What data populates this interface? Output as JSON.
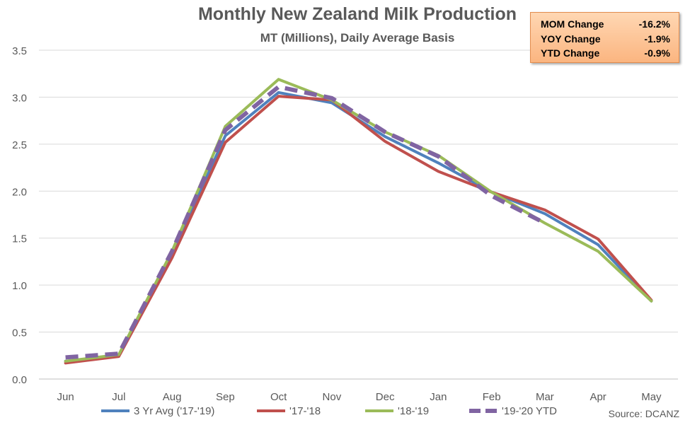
{
  "chart_data": {
    "type": "line",
    "title": "Monthly New Zealand Milk Production",
    "subtitle": "MT (Millions), Daily Average Basis",
    "categories": [
      "Jun",
      "Jul",
      "Aug",
      "Sep",
      "Oct",
      "Nov",
      "Dec",
      "Jan",
      "Feb",
      "Mar",
      "Apr",
      "May"
    ],
    "ylim": [
      0,
      3.5
    ],
    "yticks": [
      "0.0",
      "0.5",
      "1.0",
      "1.5",
      "2.0",
      "2.5",
      "3.0",
      "3.5"
    ],
    "grid": true,
    "legend_position": "bottom",
    "series": [
      {
        "name": "3 Yr Avg ('17-'19)",
        "color": "#4f81bd",
        "dashed": false,
        "values": [
          0.19,
          0.25,
          1.33,
          2.59,
          3.05,
          2.94,
          2.58,
          2.3,
          1.99,
          1.76,
          1.43,
          0.83
        ]
      },
      {
        "name": "'17-'18",
        "color": "#c0504d",
        "dashed": false,
        "values": [
          0.17,
          0.24,
          1.29,
          2.52,
          3.01,
          2.97,
          2.53,
          2.21,
          1.99,
          1.8,
          1.49,
          0.84
        ]
      },
      {
        "name": "'18-'19",
        "color": "#9bbb59",
        "dashed": false,
        "values": [
          0.19,
          0.26,
          1.36,
          2.69,
          3.19,
          2.97,
          2.63,
          2.38,
          1.99,
          1.66,
          1.36,
          0.83
        ]
      },
      {
        "name": "'19-'20 YTD",
        "color": "#8064a2",
        "dashed": true,
        "values": [
          0.23,
          0.27,
          1.36,
          2.65,
          3.11,
          2.99,
          2.63,
          2.37,
          1.95,
          1.66,
          null,
          null
        ]
      }
    ],
    "stats": [
      {
        "label": "MOM Change",
        "value": "-16.2%"
      },
      {
        "label": "YOY Change",
        "value": "-1.9%"
      },
      {
        "label": "YTD Change",
        "value": "-0.9%"
      }
    ],
    "source": "Source: DCANZ"
  }
}
